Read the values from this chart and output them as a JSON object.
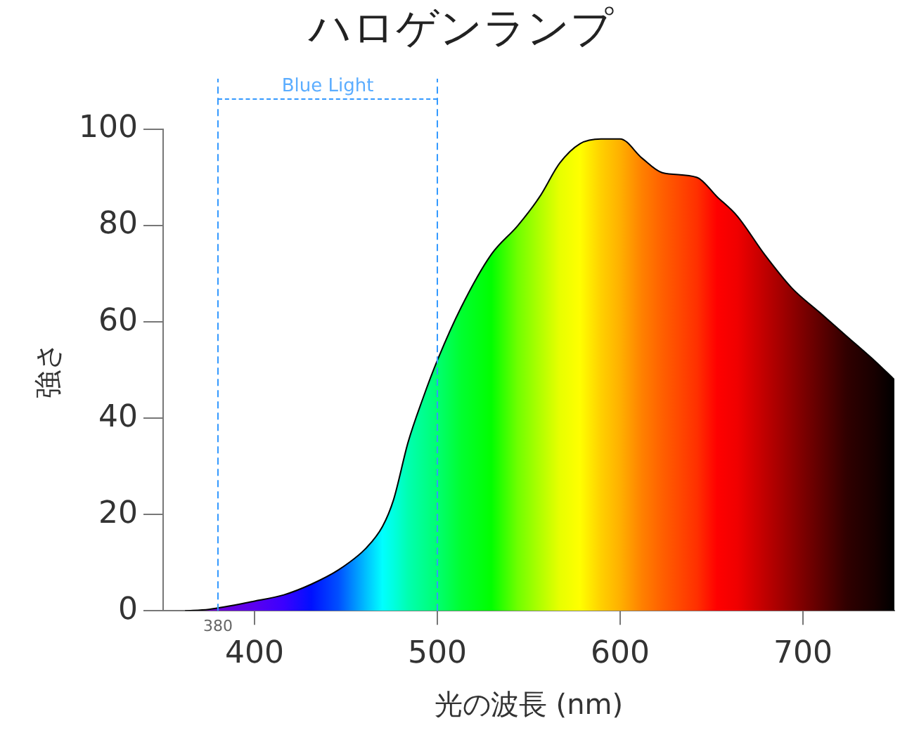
{
  "chart_data": {
    "type": "area",
    "title": "ハロゲンランプ",
    "xlabel": "光の波長 (nm)",
    "ylabel": "強さ",
    "x": [
      362,
      375,
      400,
      416,
      431,
      446,
      461,
      470,
      476,
      484,
      492,
      500,
      513,
      529.5,
      544,
      556,
      567,
      578,
      589.5,
      600,
      612,
      623,
      642,
      653,
      664,
      679,
      694,
      709,
      724,
      739,
      750
    ],
    "series": [
      {
        "color": "#000000",
        "values": [
          0,
          0.3,
          2,
          3.3,
          5.5,
          8.5,
          13,
          17.5,
          23,
          35,
          44,
          52,
          63,
          74,
          80,
          86,
          93,
          97,
          98,
          98,
          94,
          91,
          90,
          86,
          82,
          74,
          67,
          62,
          57,
          52,
          48
        ],
        "colors": [
          "#ffffff",
          "#7000d0",
          "#5a00f0",
          "#3a00ff",
          "#0010ff",
          "#0050ff",
          "#00c0ff",
          "#00ffff",
          "#00ffe0",
          "#00ffb0",
          "#00ff90",
          "#00ff70",
          "#00ff30",
          "#00ff00",
          "#70ff00",
          "#b0ff00",
          "#e8ff00",
          "#ffff00",
          "#ffd000",
          "#ffb000",
          "#ff8000",
          "#ff6000",
          "#ff3000",
          "#ff0000",
          "#f00000",
          "#c00000",
          "#900000",
          "#600000",
          "#300000",
          "#180000",
          "#000000"
        ]
      }
    ],
    "xlim": [
      350,
      750
    ],
    "xticks": [
      400,
      500,
      600,
      700
    ],
    "ylim": [
      0,
      100
    ],
    "yticks": [
      0,
      20,
      40,
      60,
      80,
      100
    ],
    "ref_lines": [
      {
        "axis": "x",
        "value": 380,
        "color": "#3399ff",
        "line_style": "dashed"
      },
      {
        "axis": "x",
        "value": 500,
        "color": "#3399ff",
        "line_style": "dashed"
      }
    ],
    "annotations": [
      "Blue Light",
      {
        "text": "380",
        "x": 380,
        "y": 0
      }
    ],
    "grid": false,
    "legend": false,
    "marker": "none"
  }
}
